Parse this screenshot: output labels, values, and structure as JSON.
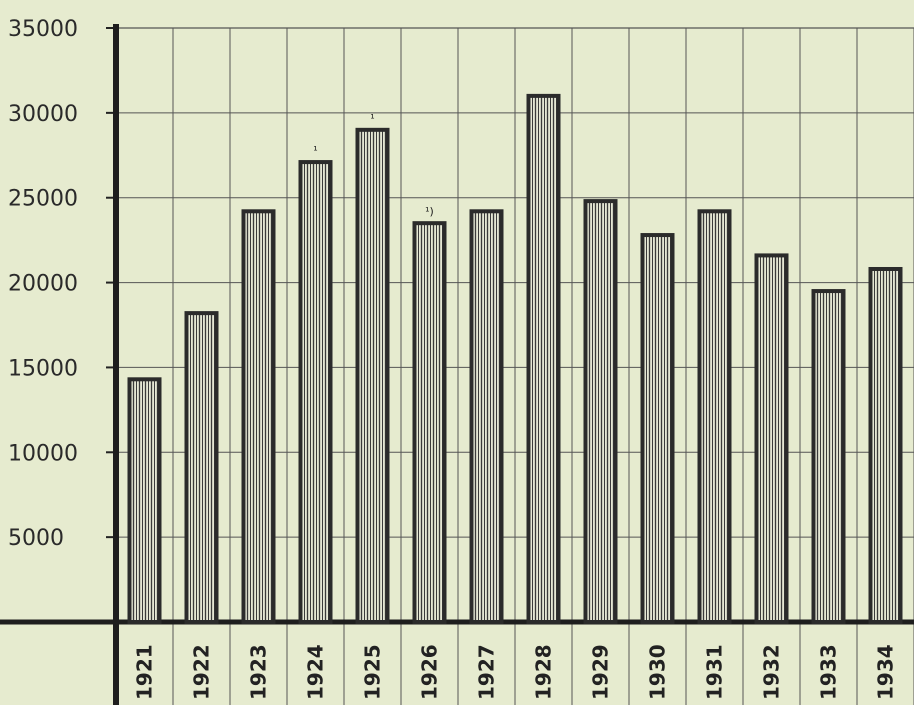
{
  "chart_data": {
    "type": "bar",
    "title": "",
    "xlabel": "",
    "ylabel": "",
    "categories": [
      "1921",
      "1922",
      "1923",
      "1924",
      "1925",
      "1926",
      "1927",
      "1928",
      "1929",
      "1930",
      "1931",
      "1932",
      "1933",
      "1934"
    ],
    "values": [
      14300,
      18200,
      24200,
      27100,
      29000,
      23500,
      24200,
      31000,
      24800,
      22800,
      24200,
      21600,
      19500,
      20800
    ],
    "footnote_markers": {
      "1924": "¹",
      "1925": "¹",
      "1926": "¹)"
    },
    "yticks": [
      5000,
      10000,
      15000,
      20000,
      25000,
      30000,
      35000
    ],
    "ytick_labels": [
      "5000",
      "10000",
      "15000",
      "20000",
      "25000",
      "30000",
      "35000"
    ],
    "ylim": [
      0,
      35000
    ],
    "grid": true,
    "legend": "none",
    "colors": {
      "bar_stroke": "#2b2b2b",
      "bar_hatch": "#3a3a3a",
      "bar_fill": "#eef0dc",
      "background": "#e6ebcf",
      "grid": "#555555"
    }
  }
}
